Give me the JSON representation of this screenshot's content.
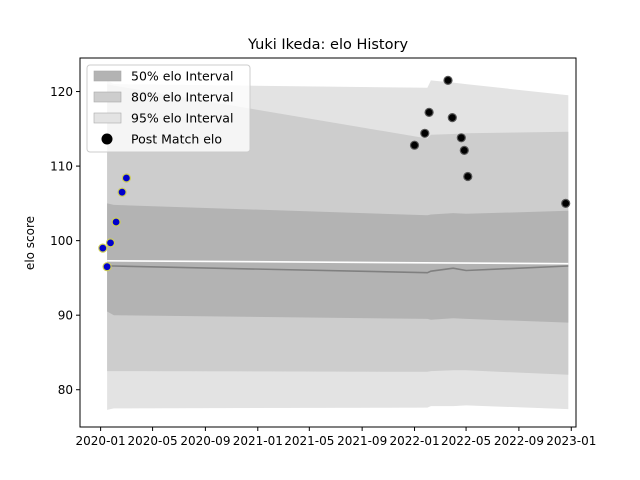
{
  "chart_data": {
    "type": "scatter",
    "title": "Yuki Ikeda: elo History",
    "xlabel": "",
    "ylabel": "elo score",
    "xlim": [
      "2019-11-14",
      "2023-01-12"
    ],
    "ylim": [
      75.0,
      124.5
    ],
    "x_ticks": [
      "2020-01",
      "2020-05",
      "2020-09",
      "2021-01",
      "2021-05",
      "2021-09",
      "2022-01",
      "2022-05",
      "2022-09",
      "2023-01"
    ],
    "y_ticks": [
      80,
      90,
      100,
      110,
      120
    ],
    "grid": false,
    "legend": {
      "position": "top-left",
      "entries": [
        "50% elo Interval",
        "80% elo Interval",
        "95% elo Interval",
        "Post Match elo"
      ]
    },
    "colors": {
      "band_50": "#b3b3b3",
      "band_80": "#cdcdcd",
      "band_95": "#e3e3e3",
      "mean_line": "#808080",
      "marker_black": "#000000",
      "marker_blue": "#0000cc",
      "marker_edge_yellow": "#cccc55"
    },
    "bands": {
      "x": [
        "2020-01-16",
        "2020-02-01",
        "2022-01-31",
        "2022-02-08",
        "2022-04-01",
        "2022-05-01",
        "2022-12-25"
      ],
      "mean": [
        96.6,
        96.6,
        95.7,
        95.9,
        96.3,
        96.0,
        96.6
      ],
      "p50": {
        "lower": [
          90.5,
          90.0,
          89.5,
          89.4,
          89.6,
          89.5,
          89.0
        ],
        "upper": [
          105.0,
          104.8,
          103.4,
          103.5,
          103.7,
          103.6,
          104.0
        ]
      },
      "p80": {
        "lower": [
          82.5,
          82.5,
          82.4,
          82.5,
          82.6,
          82.6,
          82.0
        ],
        "upper": [
          121.0,
          120.8,
          113.7,
          114.2,
          114.3,
          114.4,
          114.6
        ]
      },
      "p95": {
        "lower": [
          77.3,
          77.5,
          77.6,
          77.8,
          77.8,
          77.9,
          77.4
        ],
        "upper": [
          121.5,
          121.0,
          120.5,
          121.5,
          121.2,
          121.0,
          119.5
        ]
      },
      "white_line": {
        "x": [
          "2020-01-16",
          "2022-12-25"
        ],
        "y": [
          97.3,
          96.9
        ]
      }
    },
    "series": [
      {
        "name": "Post Match elo",
        "points": [
          {
            "x": "2020-01-06",
            "y": 99.0,
            "style": "blue"
          },
          {
            "x": "2020-01-16",
            "y": 96.5,
            "style": "blue"
          },
          {
            "x": "2020-01-24",
            "y": 99.7,
            "style": "blue"
          },
          {
            "x": "2020-02-06",
            "y": 102.5,
            "style": "blue"
          },
          {
            "x": "2020-02-20",
            "y": 106.5,
            "style": "blue"
          },
          {
            "x": "2020-03-01",
            "y": 108.4,
            "style": "blue"
          },
          {
            "x": "2022-01-01",
            "y": 112.8,
            "style": "black"
          },
          {
            "x": "2022-01-25",
            "y": 114.4,
            "style": "black"
          },
          {
            "x": "2022-02-04",
            "y": 117.2,
            "style": "black"
          },
          {
            "x": "2022-03-20",
            "y": 121.5,
            "style": "black"
          },
          {
            "x": "2022-03-30",
            "y": 116.5,
            "style": "black"
          },
          {
            "x": "2022-04-20",
            "y": 113.8,
            "style": "black"
          },
          {
            "x": "2022-04-27",
            "y": 112.1,
            "style": "black"
          },
          {
            "x": "2022-05-05",
            "y": 108.6,
            "style": "black"
          },
          {
            "x": "2022-12-19",
            "y": 105.0,
            "style": "black"
          }
        ]
      }
    ]
  }
}
